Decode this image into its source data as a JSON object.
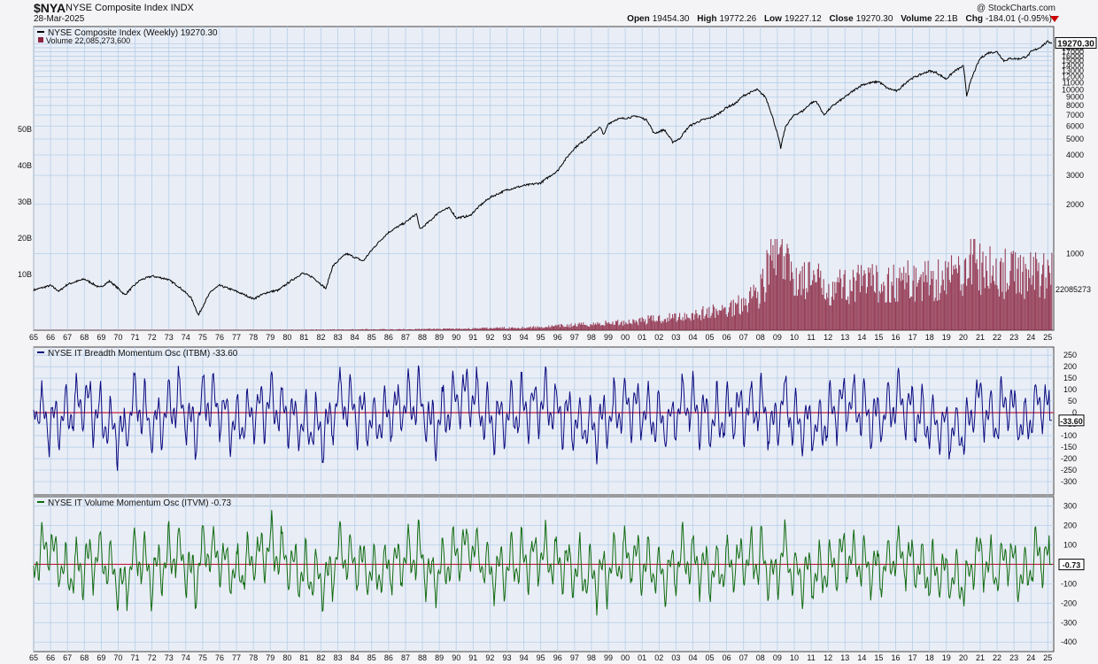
{
  "header": {
    "symbol": "$NYA",
    "name": "NYSE Composite Index  INDX",
    "date": "28-Mar-2025",
    "brand": "@ StockCharts.com",
    "open_label": "Open",
    "open": "19454.30",
    "high_label": "High",
    "high": "19772.26",
    "low_label": "Low",
    "low": "19227.12",
    "close_label": "Close",
    "close": "19270.30",
    "volume_label": "Volume",
    "volume": "22.1B",
    "chg_label": "Chg",
    "chg": "-184.01 (-0.95%)"
  },
  "colors": {
    "background": "#f4f4f6",
    "plot_bg": "#e9edf6",
    "grid": "#b5cfe8",
    "price": "#000000",
    "volume": "#8b2540",
    "itbm": "#0a0a80",
    "itvm": "#106b10",
    "zero_line": "#c21f3a"
  },
  "chart_data": [
    {
      "type": "line",
      "title": "NYSE Composite Index (Weekly) 19270.30",
      "volume_legend": "Volume 22,085,273,600",
      "last_value_label": "19270.30",
      "volume_last_label": "22085273",
      "x_ticks": [
        "65",
        "66",
        "67",
        "68",
        "69",
        "70",
        "71",
        "72",
        "73",
        "74",
        "75",
        "76",
        "77",
        "78",
        "79",
        "80",
        "81",
        "82",
        "83",
        "84",
        "85",
        "86",
        "87",
        "88",
        "89",
        "90",
        "91",
        "92",
        "93",
        "94",
        "95",
        "96",
        "97",
        "98",
        "99",
        "00",
        "01",
        "02",
        "03",
        "04",
        "05",
        "06",
        "07",
        "08",
        "09",
        "10",
        "11",
        "12",
        "13",
        "14",
        "15",
        "16",
        "17",
        "18",
        "19",
        "20",
        "21",
        "22",
        "23",
        "24",
        "25"
      ],
      "y_scale": "log",
      "y_ticks": [
        1000,
        2000,
        3000,
        4000,
        5000,
        6000,
        7000,
        8000,
        9000,
        10000,
        11000,
        12000,
        13000,
        14000,
        15000,
        16000,
        17000,
        18000,
        19000
      ],
      "y_tick_top": "20000",
      "volume_ticks": [
        "10B",
        "20B",
        "30B",
        "40B",
        "50B"
      ],
      "x": [
        1965.0,
        1966.0,
        1966.5,
        1967.0,
        1968.0,
        1968.9,
        1969.5,
        1970.4,
        1971.3,
        1972.0,
        1972.9,
        1973.5,
        1974.3,
        1974.75,
        1975.5,
        1976.0,
        1976.8,
        1977.5,
        1978.0,
        1978.8,
        1979.5,
        1980.2,
        1980.9,
        1981.5,
        1982.3,
        1982.7,
        1983.5,
        1984.0,
        1984.5,
        1985.0,
        1986.0,
        1987.0,
        1987.65,
        1987.85,
        1988.5,
        1989.0,
        1989.6,
        1990.0,
        1990.8,
        1991.5,
        1992.0,
        1993.0,
        1994.0,
        1995.0,
        1996.0,
        1997.0,
        1997.8,
        1998.5,
        1998.75,
        1999.0,
        1999.5,
        2000.0,
        2000.7,
        2001.3,
        2001.7,
        2002.3,
        2002.8,
        2003.2,
        2003.8,
        2004.5,
        2005.0,
        2005.5,
        2006.0,
        2006.5,
        2007.0,
        2007.5,
        2007.8,
        2008.3,
        2008.75,
        2009.2,
        2009.5,
        2010.0,
        2010.5,
        2011.0,
        2011.3,
        2011.75,
        2012.3,
        2013.0,
        2014.0,
        2014.5,
        2015.0,
        2015.5,
        2016.1,
        2016.8,
        2017.5,
        2018.0,
        2018.4,
        2018.98,
        2019.5,
        2020.0,
        2020.2,
        2020.5,
        2021.0,
        2021.5,
        2022.0,
        2022.4,
        2022.8,
        2023.3,
        2023.8,
        2024.0,
        2024.5,
        2025.0,
        2025.24
      ],
      "y": [
        600,
        640,
        590,
        650,
        700,
        620,
        680,
        560,
        690,
        730,
        700,
        640,
        540,
        420,
        590,
        640,
        600,
        560,
        530,
        580,
        600,
        680,
        760,
        720,
        610,
        840,
        1000,
        950,
        900,
        1050,
        1350,
        1550,
        1750,
        1400,
        1600,
        1800,
        1900,
        1650,
        1700,
        2000,
        2200,
        2450,
        2600,
        2700,
        3200,
        4400,
        5100,
        5900,
        5300,
        6200,
        6600,
        6700,
        6900,
        6500,
        5400,
        5700,
        4800,
        5000,
        6000,
        6500,
        6700,
        7100,
        7800,
        8200,
        9200,
        9700,
        10000,
        9000,
        6600,
        4400,
        6000,
        7000,
        7400,
        8300,
        8500,
        7000,
        8000,
        9000,
        10700,
        11000,
        11200,
        10200,
        9800,
        11500,
        12400,
        13000,
        12700,
        11600,
        13000,
        13900,
        9200,
        11700,
        15500,
        16800,
        17000,
        15000,
        15500,
        15400,
        16000,
        17000,
        18000,
        19600,
        19270
      ]
    },
    {
      "type": "bar",
      "title": "Volume",
      "y_unit": "B",
      "x": [
        1965,
        1980,
        1990,
        1995,
        2000,
        2003,
        2006,
        2008,
        2008.8,
        2009.2,
        2010,
        2012,
        2015,
        2018,
        2020,
        2020.3,
        2021,
        2023,
        2025
      ],
      "y": [
        0.05,
        0.1,
        0.3,
        0.7,
        1.8,
        3.0,
        4.5,
        9.0,
        17.0,
        16.0,
        12.0,
        10.0,
        10.5,
        11.5,
        13.0,
        18.0,
        13.5,
        12.5,
        13.0
      ]
    },
    {
      "type": "line",
      "title": "NYSE IT Breadth Momentum Osc (ITBM) -33.60",
      "last_value_label": "-33.60",
      "y_ticks": [
        -300,
        -250,
        -200,
        -150,
        -100,
        -50,
        0,
        50,
        100,
        150,
        200,
        250
      ],
      "ylim": [
        -350,
        270
      ],
      "x": [
        1965.0,
        1966.0,
        1968.0,
        1970.0,
        1970.3,
        1971.0,
        1972.0,
        1973.5,
        1974.5,
        1975.0,
        1977.0,
        1979.0,
        1981.0,
        1982.5,
        1983.0,
        1985.0,
        1987.8,
        1988.5,
        1990.0,
        1990.9,
        1992.0,
        1995.0,
        1998.0,
        1998.7,
        2000.0,
        2002.5,
        2003.5,
        2005.0,
        2008.0,
        2008.8,
        2009.3,
        2010.0,
        2011.5,
        2013.0,
        2015.0,
        2016.0,
        2018.0,
        2018.9,
        2020.2,
        2020.7,
        2022.0,
        2022.5,
        2023.5,
        2024.5,
        2025.24
      ],
      "y": [
        120,
        -150,
        140,
        -250,
        -310,
        200,
        -200,
        180,
        -270,
        230,
        -160,
        150,
        -180,
        -200,
        200,
        -140,
        170,
        -220,
        160,
        220,
        -120,
        130,
        -200,
        -140,
        120,
        -160,
        150,
        -120,
        110,
        -240,
        200,
        -120,
        -170,
        150,
        -120,
        160,
        -130,
        -170,
        -260,
        180,
        -150,
        150,
        -200,
        150,
        -33.6
      ]
    },
    {
      "type": "line",
      "title": "NYSE IT Volume Momentum Osc (ITVM) -0.73",
      "last_value_label": "-0.73",
      "y_ticks": [
        -400,
        -300,
        -200,
        -100,
        0,
        100,
        200,
        300
      ],
      "ylim": [
        -440,
        330
      ],
      "x": [
        1965.0,
        1965.8,
        1967.0,
        1969.0,
        1970.3,
        1971.0,
        1972.0,
        1973.5,
        1974.5,
        1975.0,
        1977.0,
        1979.0,
        1981.0,
        1982.5,
        1983.0,
        1985.0,
        1987.8,
        1988.5,
        1990.0,
        1990.9,
        1992.0,
        1995.0,
        1998.0,
        1998.7,
        2000.0,
        2002.5,
        2003.5,
        2005.0,
        2008.0,
        2008.8,
        2009.3,
        2010.0,
        2011.5,
        2013.0,
        2015.0,
        2016.0,
        2018.0,
        2018.9,
        2020.2,
        2020.7,
        2022.0,
        2022.5,
        2023.5,
        2024.5,
        2025.24
      ],
      "y": [
        60,
        280,
        -180,
        150,
        -380,
        180,
        -170,
        200,
        -300,
        280,
        -150,
        270,
        -170,
        -230,
        200,
        -150,
        180,
        -220,
        170,
        270,
        -140,
        150,
        -200,
        -150,
        120,
        -170,
        140,
        -120,
        100,
        -230,
        220,
        -120,
        -160,
        140,
        -120,
        150,
        -130,
        -170,
        -290,
        180,
        -150,
        150,
        -200,
        170,
        -0.73
      ]
    }
  ]
}
